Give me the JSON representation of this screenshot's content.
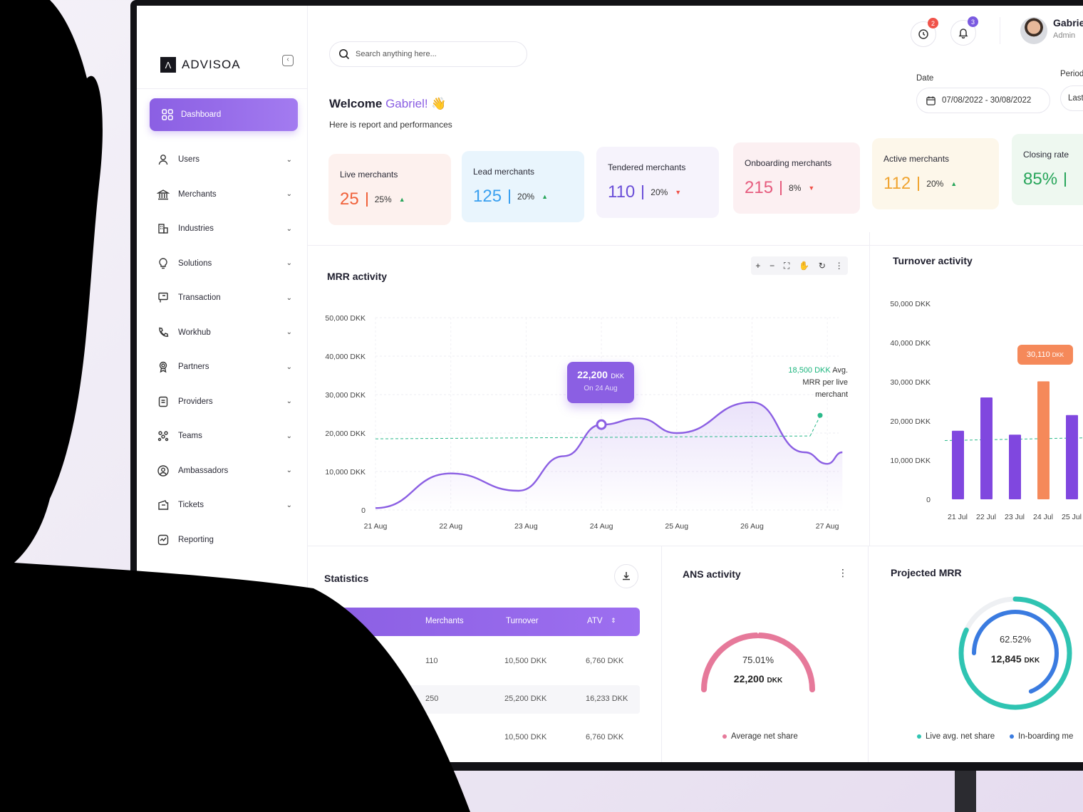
{
  "brand": {
    "name": "ADVISOA",
    "mark": "Λ"
  },
  "nav": {
    "active": "Dashboard",
    "items": [
      {
        "label": "Users",
        "icon": "user-icon"
      },
      {
        "label": "Merchants",
        "icon": "bank-icon"
      },
      {
        "label": "Industries",
        "icon": "building-icon"
      },
      {
        "label": "Solutions",
        "icon": "lightbulb-icon"
      },
      {
        "label": "Transaction",
        "icon": "receipt-icon"
      },
      {
        "label": "Workhub",
        "icon": "phone-icon"
      },
      {
        "label": "Partners",
        "icon": "award-icon"
      },
      {
        "label": "Providers",
        "icon": "document-icon"
      },
      {
        "label": "Teams",
        "icon": "team-icon"
      },
      {
        "label": "Ambassadors",
        "icon": "user-circle-icon"
      },
      {
        "label": "Tickets",
        "icon": "ticket-icon"
      },
      {
        "label": "Reporting",
        "icon": "report-icon"
      }
    ]
  },
  "search": {
    "placeholder": "Search anything here..."
  },
  "topbar": {
    "notif_a_count": "2",
    "notif_b_count": "3",
    "user_name": "Gabriel",
    "user_role": "Admin"
  },
  "welcome": {
    "prefix": "Welcome",
    "name": "Gabriel!",
    "emoji": "👋",
    "subtitle": "Here is report and performances"
  },
  "filters": {
    "date_label": "Date",
    "date_value": "07/08/2022 - 30/08/2022",
    "period_label": "Period",
    "period_value": "Last"
  },
  "kpis": [
    {
      "label": "Live merchants",
      "value": "25",
      "pct": "25%",
      "trend": "up",
      "color": "#f0613a",
      "bg": "#fdf1ee"
    },
    {
      "label": "Lead merchants",
      "value": "125",
      "pct": "20%",
      "trend": "up",
      "color": "#3aa0f0",
      "bg": "#e9f5fd"
    },
    {
      "label": "Tendered merchants",
      "value": "110",
      "pct": "20%",
      "trend": "down",
      "color": "#6b4fd8",
      "bg": "#f6f3fc"
    },
    {
      "label": "Onboarding merchants",
      "value": "215",
      "pct": "8%",
      "trend": "down",
      "color": "#e65c7e",
      "bg": "#fcf0f2"
    },
    {
      "label": "Active merchants",
      "value": "112",
      "pct": "20%",
      "trend": "up",
      "color": "#f0a430",
      "bg": "#fdf7ea"
    },
    {
      "label": "Closing rate",
      "value": "85%",
      "pct": "",
      "trend": "",
      "color": "#27a55a",
      "bg": "#eef8f0"
    }
  ],
  "mrr": {
    "title": "MRR activity",
    "toolbar": [
      "+",
      "−",
      "⛶",
      "✋",
      "↻",
      "⋮"
    ],
    "tooltip_value": "22,200",
    "tooltip_unit": "DKK",
    "tooltip_date": "On 24 Aug",
    "avg_value": "18,500 DKK",
    "avg_text_1": "Avg.",
    "avg_text_2": "MRR per live",
    "avg_text_3": "merchant"
  },
  "turnover": {
    "title": "Turnover activity",
    "tip_value": "30,110",
    "tip_unit": "DKK"
  },
  "statistics": {
    "title": "Statistics",
    "columns": [
      "Merchants",
      "Turnover",
      "ATV"
    ],
    "rows": [
      {
        "merchants": "110",
        "turnover": "10,500 DKK",
        "atv": "6,760 DKK"
      },
      {
        "merchants": "250",
        "turnover": "25,200 DKK",
        "atv": "16,233 DKK"
      },
      {
        "merchants": "",
        "turnover": "10,500 DKK",
        "atv": "6,760 DKK"
      }
    ]
  },
  "ans": {
    "title": "ANS activity",
    "pct": "75.01%",
    "value": "22,200",
    "unit": "DKK",
    "legend": "Average net share",
    "legend_color": "#e6799a"
  },
  "projected": {
    "title": "Projected MRR",
    "pct": "62.52%",
    "value": "12,845",
    "unit": "DKK",
    "legend_a": "Live avg. net share",
    "legend_b": "In-boarding me",
    "color_a": "#2fc4b2",
    "color_b": "#3a7be0"
  },
  "chart_data": [
    {
      "type": "area",
      "title": "MRR activity",
      "x": [
        "21 Aug",
        "22 Aug",
        "23 Aug",
        "24 Aug",
        "25 Aug",
        "26 Aug",
        "27 Aug"
      ],
      "y_ticks": [
        "50,000 DKK",
        "40,000 DKK",
        "30,000 DKK",
        "20,000 DKK",
        "10,000 DKK",
        "0"
      ],
      "ylim": [
        0,
        50000
      ],
      "series": [
        {
          "points": [
            [
              0,
              500
            ],
            [
              1,
              9500
            ],
            [
              1.9,
              5000
            ],
            [
              2.5,
              14000
            ],
            [
              3.0,
              22200
            ],
            [
              3.5,
              23800
            ],
            [
              4.0,
              20000
            ],
            [
              5.0,
              28000
            ],
            [
              5.7,
              15000
            ],
            [
              6.0,
              12000
            ],
            [
              6.2,
              15000
            ]
          ]
        }
      ],
      "reference_line": 18500,
      "grid": true
    },
    {
      "type": "bar",
      "title": "Turnover activity",
      "categories": [
        "21 Jul",
        "22 Jul",
        "23 Jul",
        "24 Jul",
        "25 Jul"
      ],
      "y_ticks": [
        "50,000 DKK",
        "40,000 DKK",
        "30,000 DKK",
        "20,000 DKK",
        "10,000 DKK",
        "0"
      ],
      "ylim": [
        0,
        50000
      ],
      "values": [
        17500,
        26000,
        16500,
        30110,
        21500
      ],
      "highlight_index": 3,
      "reference_line": 15000
    },
    {
      "type": "pie",
      "title": "ANS activity",
      "values": [
        75.01
      ],
      "label": "75.01%"
    },
    {
      "type": "pie",
      "title": "Projected MRR",
      "values": [
        62.52
      ],
      "label": "62.52%"
    }
  ]
}
